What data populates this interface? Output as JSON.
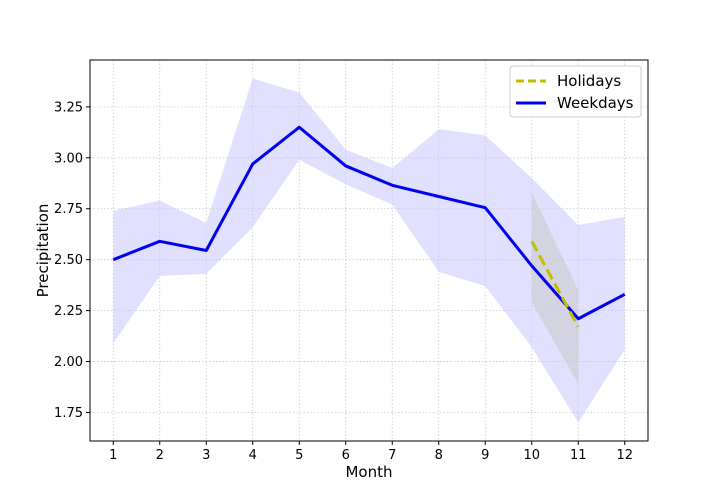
{
  "chart_data": {
    "type": "line",
    "xlabel": "Month",
    "ylabel": "Precipitation",
    "xlim": [
      0.5,
      12.5
    ],
    "ylim": [
      1.61,
      3.48
    ],
    "xticks": [
      1,
      2,
      3,
      4,
      5,
      6,
      7,
      8,
      9,
      10,
      11,
      12
    ],
    "yticks": [
      1.75,
      2.0,
      2.25,
      2.5,
      2.75,
      3.0,
      3.25
    ],
    "grid": true,
    "legend_position": "top-right",
    "series": [
      {
        "name": "Holidays",
        "color": "#bfbf00",
        "line_style": "dashed",
        "band_color": "#c8c8c8",
        "x": [
          10,
          11
        ],
        "y": [
          2.59,
          2.17
        ],
        "lower": [
          2.29,
          1.89
        ],
        "upper": [
          2.83,
          2.35
        ]
      },
      {
        "name": "Weekdays",
        "color": "#0000ee",
        "line_style": "solid",
        "band_color": "#c8c8ff",
        "x": [
          1,
          2,
          3,
          4,
          5,
          6,
          7,
          8,
          9,
          10,
          11,
          12
        ],
        "y": [
          2.5,
          2.59,
          2.545,
          2.97,
          3.15,
          2.96,
          2.865,
          2.81,
          2.755,
          2.47,
          2.21,
          2.33
        ],
        "lower": [
          2.09,
          2.42,
          2.43,
          2.66,
          2.99,
          2.87,
          2.77,
          2.44,
          2.37,
          2.07,
          1.7,
          2.06
        ],
        "upper": [
          2.74,
          2.79,
          2.68,
          3.39,
          3.32,
          3.04,
          2.95,
          3.14,
          3.11,
          2.9,
          2.67,
          2.71
        ]
      }
    ]
  }
}
